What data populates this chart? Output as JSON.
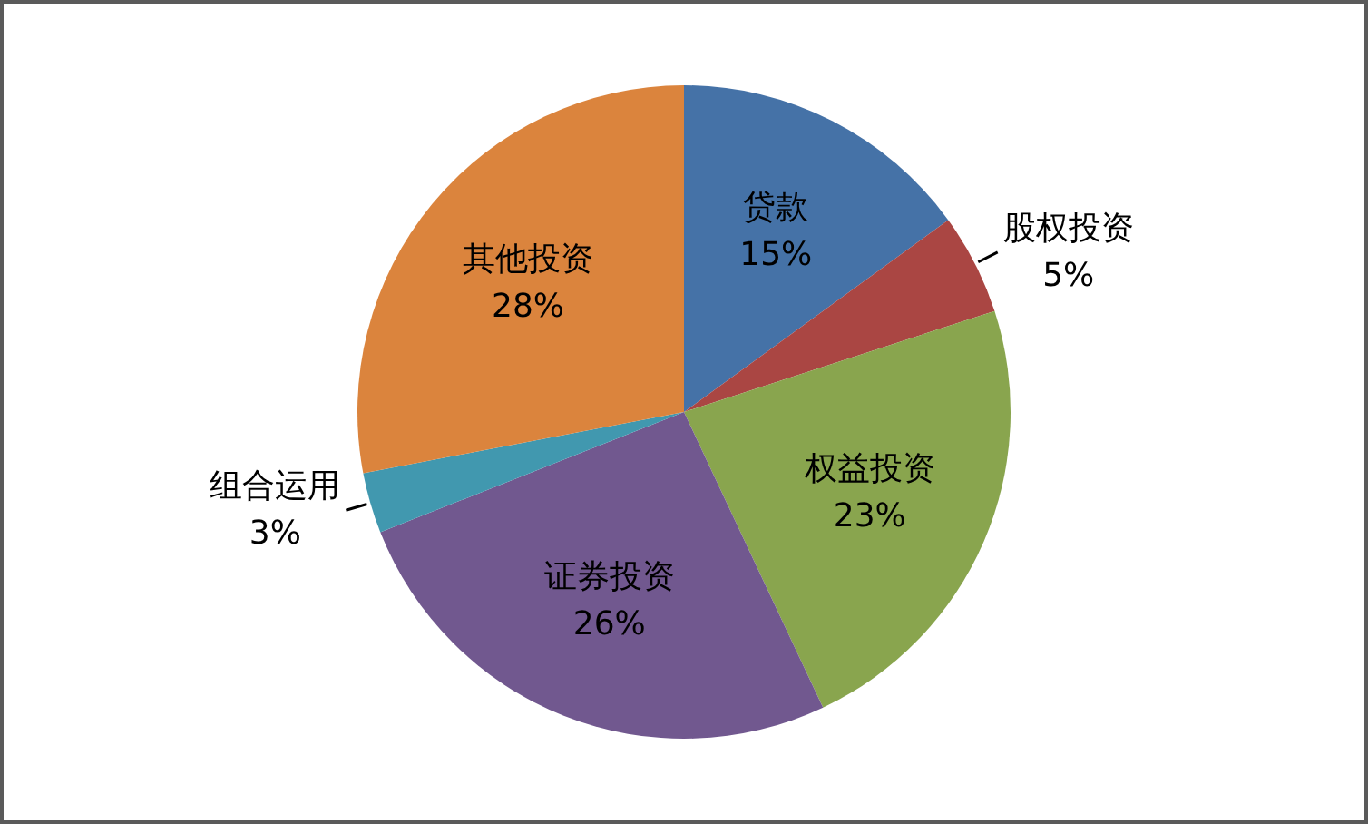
{
  "chart_data": {
    "type": "pie",
    "categories": [
      "贷款",
      "股权投资",
      "权益投资",
      "证券投资",
      "组合运用",
      "其他投资"
    ],
    "values": [
      15,
      5,
      23,
      26,
      3,
      28
    ],
    "colors": [
      "#4572a7",
      "#aa4643",
      "#89a54e",
      "#71588f",
      "#4198af",
      "#db843d"
    ],
    "value_labels": [
      "15%",
      "5%",
      "23%",
      "26%",
      "3%",
      "28%"
    ]
  }
}
